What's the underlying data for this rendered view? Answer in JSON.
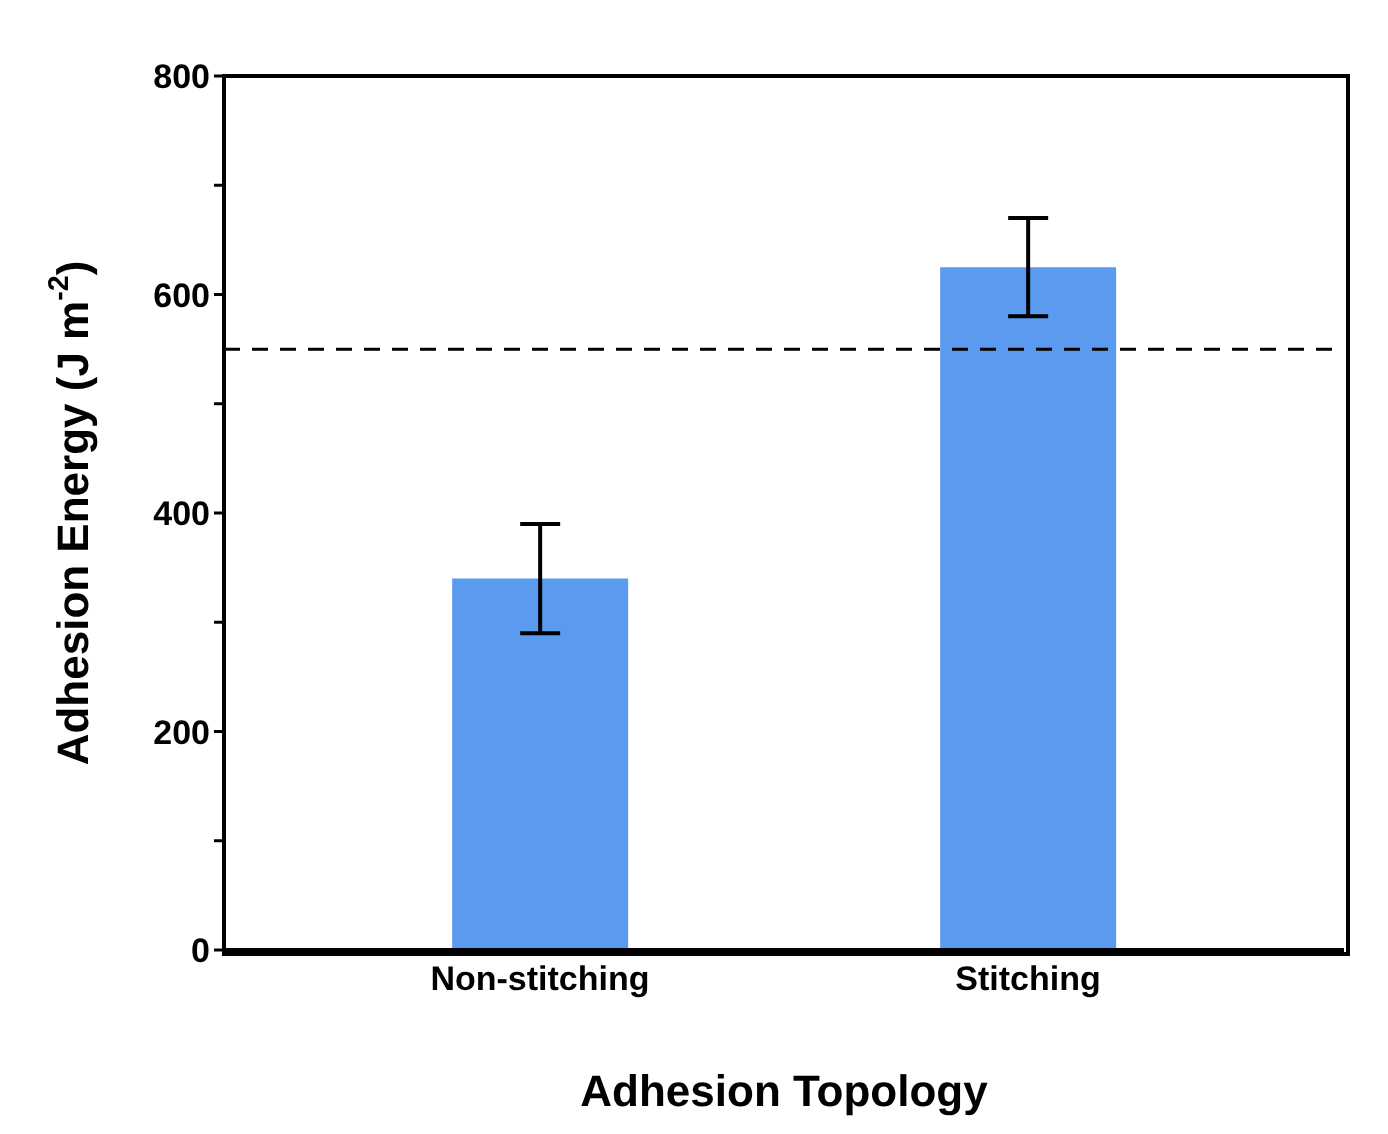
{
  "chart_data": {
    "type": "bar",
    "xlabel": "Adhesion Topology",
    "ylabel": "Adhesion Energy (J m$^{-2}$)",
    "categories": [
      "Non-stitching",
      "Stitching"
    ],
    "values": [
      340,
      625
    ],
    "errors": [
      50,
      45
    ],
    "color": "#5b9bef",
    "ylim": [
      0,
      800
    ],
    "yticks": [
      0,
      {
        "value": 100,
        "label": null
      },
      200,
      {
        "value": 300,
        "label": null
      },
      400,
      {
        "value": 500,
        "label": null
      },
      600,
      {
        "value": 700,
        "label": null
      },
      800
    ],
    "ref_lines": [
      {
        "axis": "y",
        "value": 550,
        "line_style": "dashed",
        "color": "#000000"
      }
    ],
    "grid": false,
    "legend": false
  }
}
